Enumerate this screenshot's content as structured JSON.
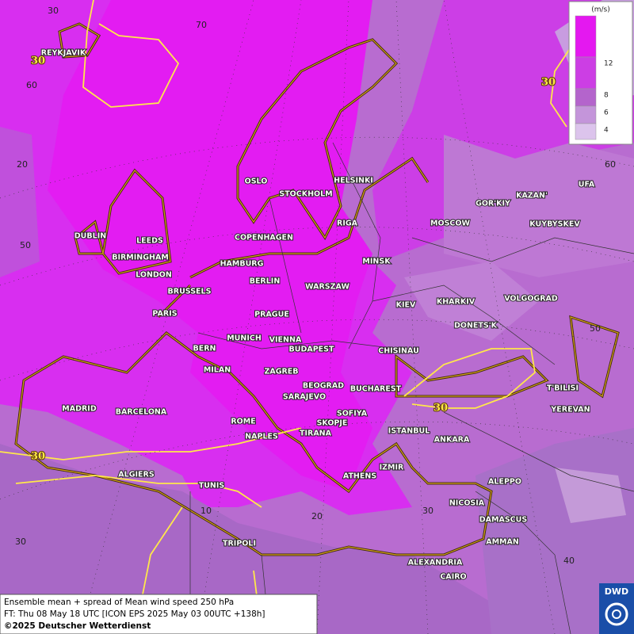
{
  "legend": {
    "unit": "(m/s)",
    "bands": [
      {
        "color": "#e418f0"
      },
      {
        "color": "#cc3ee4"
      },
      {
        "color": "#b464cc"
      },
      {
        "color": "#c495da"
      },
      {
        "color": "#dcc4ec"
      }
    ],
    "ticks": [
      "12",
      "8",
      "6",
      "4"
    ]
  },
  "cities": [
    "REYKJAVIK",
    "OSLO",
    "STOCKHOLM",
    "HELSINKI",
    "KAZAN'",
    "UFA",
    "GOR'KIY",
    "DUBLIN",
    "LEEDS",
    "COPENHAGEN",
    "RIGA",
    "MOSCOW",
    "KUYBYSKEV",
    "BIRMINGHAM",
    "HAMBURG",
    "MINSK",
    "LONDON",
    "BERLIN",
    "WARSZAW",
    "BRUSSELS",
    "KIEV",
    "KHARKIV",
    "VOLGOGRAD",
    "PARIS",
    "PRAGUE",
    "DONETS'K",
    "MUNICH",
    "VIENNA",
    "BERN",
    "BUDAPEST",
    "CHISINAU",
    "MILAN",
    "ZAGREB",
    "BEOGRAD",
    "BUCHAREST",
    "T'BILISI",
    "SARAJEVO",
    "MADRID",
    "BARCELONA",
    "SOFIYA",
    "YEREVAN",
    "ROME",
    "SKOPJE",
    "NAPLES",
    "TIRANA",
    "ISTANBUL",
    "ANKARA",
    "ALGIERS",
    "IZMIR",
    "ATHENS",
    "ALEPPO",
    "TUNIS",
    "NICOSIA",
    "DAMASCUS",
    "TRIPOLI",
    "AMMAN",
    "ALEXANDRIA",
    "CAIRO"
  ],
  "graticule_labels": [
    "30",
    "70",
    "60",
    "20",
    "60",
    "50",
    "50",
    "10",
    "20",
    "30",
    "40",
    "30"
  ],
  "contour_labels": [
    "30",
    "30",
    "30",
    "30"
  ],
  "footer": {
    "title": "Ensemble mean + spread of Mean wind speed 250 hPa",
    "forecast_time": "FT: Thu 08 May 18 UTC [ICON EPS 2025 May 03 00UTC +138h]",
    "copyright": "©2025 Deutscher Wetterdienst"
  },
  "logo": "DWD"
}
